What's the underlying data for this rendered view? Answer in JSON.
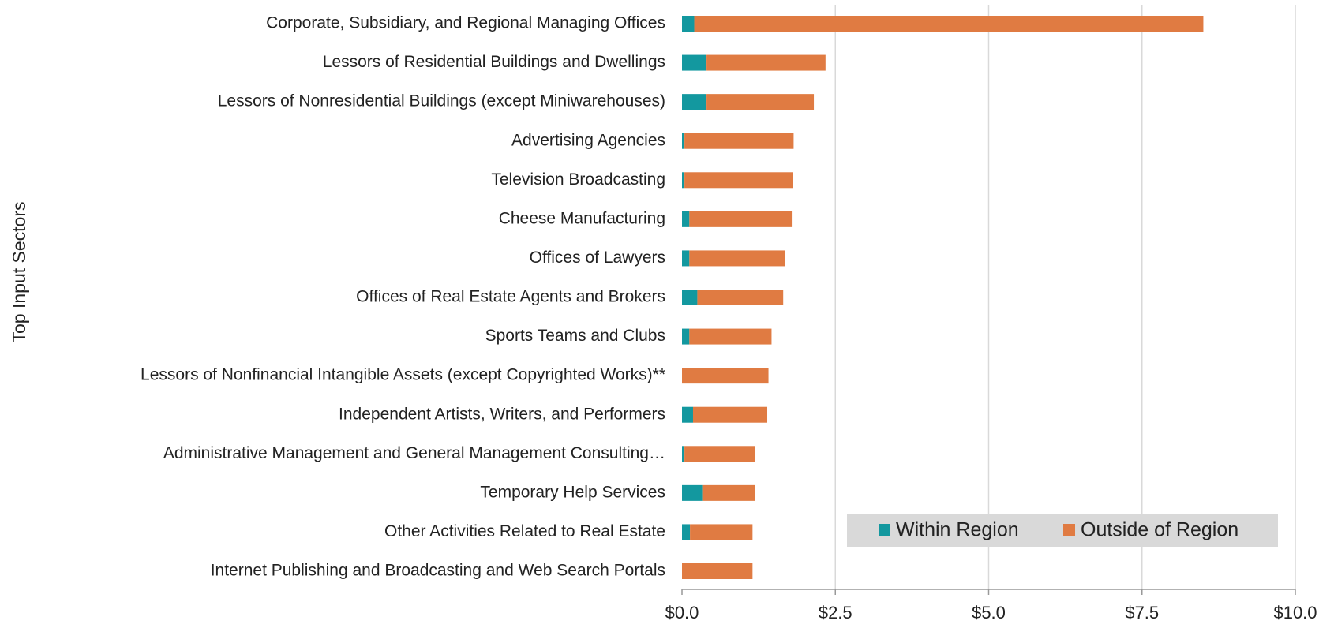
{
  "chart_data": {
    "type": "stacked_barh",
    "y_axis_label": "Top Input Sectors",
    "categories": [
      "Corporate, Subsidiary, and Regional Managing Offices",
      "Lessors of Residential Buildings and Dwellings",
      "Lessors of Nonresidential Buildings (except Miniwarehouses)",
      "Advertising Agencies",
      "Television Broadcasting",
      "Cheese Manufacturing",
      "Offices of Lawyers",
      "Offices of Real Estate Agents and Brokers",
      "Sports Teams and Clubs",
      "Lessors of Nonfinancial Intangible Assets (except Copyrighted Works)**",
      "Independent Artists, Writers, and Performers",
      "Administrative Management and General Management Consulting…",
      "Temporary Help Services",
      "Other Activities Related to Real Estate",
      "Internet Publishing and Broadcasting and Web Search Portals"
    ],
    "series": [
      {
        "name": "Within Region",
        "color": "#13989f",
        "values": [
          0.2,
          0.4,
          0.4,
          0.04,
          0.04,
          0.12,
          0.12,
          0.25,
          0.12,
          0,
          0.18,
          0.04,
          0.33,
          0.13,
          0
        ]
      },
      {
        "name": "Outside of Region",
        "color": "#e07b42",
        "values": [
          8.3,
          1.94,
          1.75,
          1.78,
          1.77,
          1.67,
          1.56,
          1.4,
          1.34,
          1.41,
          1.21,
          1.15,
          0.86,
          1.02,
          1.15
        ]
      }
    ],
    "xlim": [
      0,
      10
    ],
    "xticks": [
      {
        "value": 0,
        "label": "$0.0"
      },
      {
        "value": 2.5,
        "label": "$2.5"
      },
      {
        "value": 5,
        "label": "$5.0"
      },
      {
        "value": 7.5,
        "label": "$7.5"
      },
      {
        "value": 10,
        "label": "$10.0"
      }
    ],
    "grid": true,
    "legend": "lower right"
  }
}
